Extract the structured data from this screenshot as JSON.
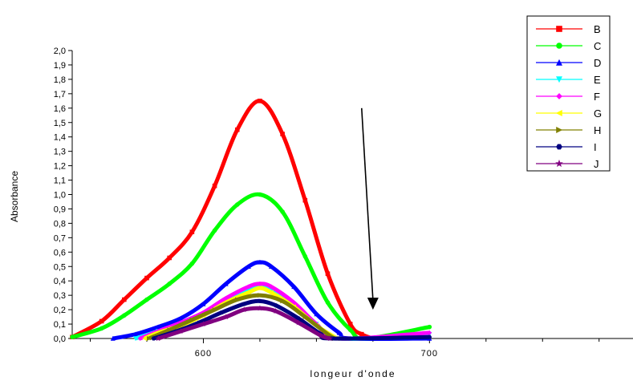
{
  "chart_data": {
    "type": "line",
    "title": "",
    "xlabel": "longeur d'onde",
    "ylabel": "Absorbance",
    "xlim": [
      542,
      790
    ],
    "ylim": [
      0.0,
      2.0
    ],
    "x_ticks": [
      600,
      700
    ],
    "x_tick_labels": [
      "600",
      "700"
    ],
    "y_ticks": [
      0.0,
      0.1,
      0.2,
      0.3,
      0.4,
      0.5,
      0.6,
      0.7,
      0.8,
      0.9,
      1.0,
      1.1,
      1.2,
      1.3,
      1.4,
      1.5,
      1.6,
      1.7,
      1.8,
      1.9,
      2.0
    ],
    "y_tick_labels": [
      "0,0",
      "0,1",
      "0,2",
      "0,3",
      "0,4",
      "0,5",
      "0,6",
      "0,7",
      "0,8",
      "0,9",
      "1,0",
      "1,1",
      "1,2",
      "1,3",
      "1,4",
      "1,5",
      "1,6",
      "1,7",
      "1,8",
      "1,9",
      "2,0"
    ],
    "grid": false,
    "legend_position": "top-right",
    "series": [
      {
        "name": "B",
        "color": "#ff0000",
        "marker": "square",
        "x": [
          542,
          555,
          565,
          575,
          585,
          595,
          605,
          615,
          625,
          635,
          645,
          655,
          665,
          670,
          675
        ],
        "values": [
          0.01,
          0.12,
          0.27,
          0.42,
          0.56,
          0.74,
          1.06,
          1.45,
          1.65,
          1.42,
          0.96,
          0.45,
          0.1,
          0.03,
          0.0
        ]
      },
      {
        "name": "C",
        "color": "#00ff00",
        "marker": "circle",
        "x": [
          542,
          555,
          565,
          575,
          585,
          595,
          605,
          615,
          625,
          635,
          645,
          655,
          665,
          672,
          700
        ],
        "values": [
          0.01,
          0.07,
          0.16,
          0.27,
          0.38,
          0.52,
          0.75,
          0.93,
          1.0,
          0.88,
          0.57,
          0.25,
          0.06,
          0.0,
          0.08
        ]
      },
      {
        "name": "D",
        "color": "#0000ff",
        "marker": "triangle-up",
        "x": [
          560,
          570,
          580,
          590,
          600,
          610,
          620,
          625,
          630,
          640,
          650,
          660,
          665,
          700
        ],
        "values": [
          0.0,
          0.03,
          0.08,
          0.14,
          0.24,
          0.38,
          0.5,
          0.53,
          0.5,
          0.36,
          0.17,
          0.04,
          0.0,
          0.0
        ]
      },
      {
        "name": "E",
        "color": "#00ffff",
        "marker": "triangle-down",
        "x": [
          570,
          580,
          590,
          600,
          610,
          620,
          625,
          630,
          640,
          650,
          660,
          700
        ],
        "values": [
          0.0,
          0.05,
          0.1,
          0.17,
          0.26,
          0.34,
          0.37,
          0.34,
          0.24,
          0.1,
          0.0,
          0.03
        ]
      },
      {
        "name": "F",
        "color": "#ff00ff",
        "marker": "diamond",
        "x": [
          572,
          580,
          590,
          600,
          610,
          620,
          625,
          630,
          640,
          650,
          660,
          700
        ],
        "values": [
          0.0,
          0.05,
          0.11,
          0.18,
          0.28,
          0.36,
          0.38,
          0.36,
          0.25,
          0.1,
          0.0,
          0.04
        ]
      },
      {
        "name": "G",
        "color": "#ffff00",
        "marker": "triangle-left",
        "x": [
          574,
          580,
          590,
          600,
          610,
          620,
          625,
          630,
          640,
          650,
          659
        ],
        "values": [
          0.0,
          0.04,
          0.09,
          0.16,
          0.25,
          0.32,
          0.35,
          0.32,
          0.22,
          0.09,
          0.0
        ]
      },
      {
        "name": "H",
        "color": "#808000",
        "marker": "triangle-right",
        "x": [
          576,
          585,
          595,
          605,
          615,
          625,
          635,
          645,
          655,
          658
        ],
        "values": [
          0.0,
          0.06,
          0.13,
          0.2,
          0.27,
          0.3,
          0.26,
          0.15,
          0.03,
          0.0
        ]
      },
      {
        "name": "I",
        "color": "#000080",
        "marker": "hexagon",
        "x": [
          578,
          588,
          598,
          608,
          618,
          625,
          632,
          642,
          652,
          657,
          700
        ],
        "values": [
          0.0,
          0.05,
          0.11,
          0.18,
          0.24,
          0.26,
          0.23,
          0.14,
          0.03,
          0.0,
          0.01
        ]
      },
      {
        "name": "J",
        "color": "#800080",
        "marker": "star",
        "x": [
          580,
          590,
          600,
          610,
          618,
          625,
          632,
          642,
          652,
          656
        ],
        "values": [
          0.0,
          0.05,
          0.1,
          0.15,
          0.2,
          0.21,
          0.19,
          0.11,
          0.02,
          0.0
        ]
      }
    ],
    "annotation": {
      "type": "arrow",
      "from": [
        670,
        1.6
      ],
      "to": [
        675,
        0.2
      ]
    }
  }
}
